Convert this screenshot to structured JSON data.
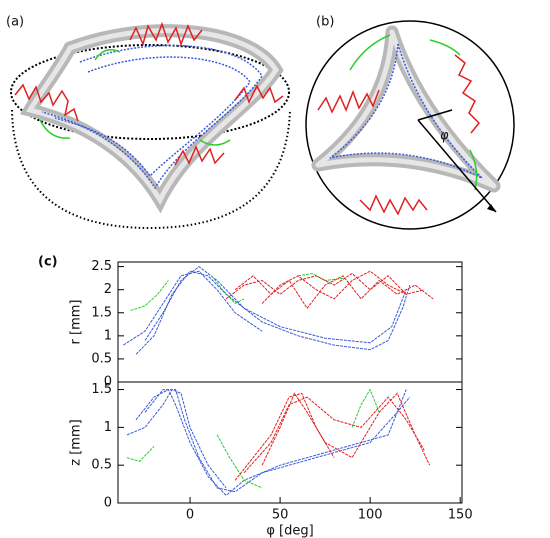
{
  "panels": {
    "a": "(a)",
    "b": "(b)",
    "c": "(c)",
    "angle": "φ"
  },
  "chart_data": [
    {
      "type": "line",
      "y_label": "r [mm]",
      "xlim": [
        -40,
        151
      ],
      "ylim": [
        0,
        2.6
      ],
      "yticks": [
        0,
        0.5,
        1,
        1.5,
        2,
        2.5
      ],
      "series": [
        {
          "color": "#3a5bd9",
          "x": [
            -37,
            -25,
            -15,
            -5,
            5,
            15,
            25,
            40
          ],
          "values": [
            0.8,
            1.1,
            1.7,
            2.3,
            2.4,
            2.0,
            1.5,
            1.1
          ]
        },
        {
          "color": "#3a5bd9",
          "x": [
            -30,
            -20,
            -10,
            0,
            10,
            20,
            40,
            60,
            80,
            100,
            110,
            118,
            122
          ],
          "values": [
            0.6,
            1.0,
            1.9,
            2.4,
            2.3,
            1.9,
            1.3,
            1.0,
            0.8,
            0.7,
            0.9,
            1.6,
            2.1
          ]
        },
        {
          "color": "#3a5bd9",
          "x": [
            -25,
            -15,
            -5,
            5,
            15,
            30,
            50,
            75,
            100,
            112,
            120
          ],
          "values": [
            0.9,
            1.5,
            2.2,
            2.5,
            2.2,
            1.6,
            1.2,
            0.95,
            0.85,
            1.2,
            2.0
          ]
        },
        {
          "color": "#2ecc2e",
          "x": [
            -33,
            -25,
            -18,
            -12
          ],
          "values": [
            1.55,
            1.65,
            1.9,
            2.2
          ]
        },
        {
          "color": "#2ecc2e",
          "x": [
            12,
            18,
            25,
            30
          ],
          "values": [
            2.3,
            2.0,
            1.7,
            1.8
          ]
        },
        {
          "color": "#2ecc2e",
          "x": [
            60,
            68,
            75,
            85
          ],
          "values": [
            2.3,
            2.35,
            2.2,
            2.25
          ]
        },
        {
          "color": "#e02020",
          "x": [
            20,
            30,
            40,
            50,
            60,
            70,
            80,
            90,
            100,
            110,
            120
          ],
          "values": [
            1.8,
            2.1,
            2.2,
            1.9,
            2.2,
            2.3,
            2.1,
            2.35,
            2.0,
            2.3,
            1.9
          ]
        },
        {
          "color": "#e02020",
          "x": [
            25,
            35,
            45,
            55,
            65,
            75,
            85,
            95,
            105,
            115,
            125,
            135
          ],
          "values": [
            2.0,
            2.3,
            1.9,
            2.2,
            1.6,
            2.1,
            2.3,
            1.8,
            2.2,
            1.9,
            2.1,
            1.8
          ]
        },
        {
          "color": "#e02020",
          "x": [
            40,
            50,
            60,
            70,
            80,
            90,
            100,
            110,
            120,
            130
          ],
          "values": [
            1.7,
            2.1,
            2.3,
            2.0,
            1.8,
            2.2,
            2.4,
            2.1,
            1.9,
            2.0
          ]
        }
      ]
    },
    {
      "type": "line",
      "x_label": "φ [deg]",
      "y_label": "z [mm]",
      "xlim": [
        -40,
        151
      ],
      "ylim": [
        0,
        1.6
      ],
      "xticks": [
        0,
        50,
        100,
        150
      ],
      "yticks": [
        0,
        0.5,
        1,
        1.5
      ],
      "series": [
        {
          "color": "#3a5bd9",
          "x": [
            -35,
            -25,
            -15,
            -10,
            -5,
            0,
            10,
            20
          ],
          "values": [
            0.9,
            1.0,
            1.3,
            1.5,
            1.45,
            1.0,
            0.5,
            0.2
          ]
        },
        {
          "color": "#3a5bd9",
          "x": [
            -30,
            -20,
            -12,
            -8,
            0,
            10,
            20,
            30,
            50,
            80,
            110,
            120
          ],
          "values": [
            1.1,
            1.4,
            1.5,
            1.3,
            0.8,
            0.35,
            0.1,
            0.3,
            0.5,
            0.7,
            0.9,
            1.5
          ]
        },
        {
          "color": "#3a5bd9",
          "x": [
            -25,
            -15,
            -8,
            -3,
            5,
            15,
            25,
            40,
            70,
            100,
            115,
            122
          ],
          "values": [
            1.2,
            1.5,
            1.5,
            1.1,
            0.6,
            0.2,
            0.15,
            0.4,
            0.6,
            0.8,
            1.2,
            1.4
          ]
        },
        {
          "color": "#2ecc2e",
          "x": [
            -35,
            -28,
            -20
          ],
          "values": [
            0.6,
            0.55,
            0.75
          ]
        },
        {
          "color": "#2ecc2e",
          "x": [
            15,
            22,
            30,
            40
          ],
          "values": [
            0.9,
            0.6,
            0.3,
            0.2
          ]
        },
        {
          "color": "#2ecc2e",
          "x": [
            90,
            95,
            100,
            105
          ],
          "values": [
            1.0,
            1.3,
            1.5,
            1.2
          ]
        },
        {
          "color": "#e02020",
          "x": [
            25,
            35,
            45,
            55,
            62,
            70,
            80
          ],
          "values": [
            0.3,
            0.6,
            0.9,
            1.4,
            1.45,
            1.0,
            0.6
          ]
        },
        {
          "color": "#e02020",
          "x": [
            40,
            50,
            58,
            65,
            75,
            90,
            105,
            115,
            125,
            133
          ],
          "values": [
            0.5,
            1.0,
            1.45,
            1.2,
            0.8,
            0.6,
            1.2,
            1.45,
            0.9,
            0.5
          ]
        },
        {
          "color": "#e02020",
          "x": [
            30,
            45,
            55,
            65,
            80,
            95,
            110,
            120,
            130
          ],
          "values": [
            0.4,
            0.8,
            1.3,
            1.4,
            1.1,
            1.0,
            1.4,
            1.1,
            0.7
          ]
        }
      ]
    }
  ]
}
